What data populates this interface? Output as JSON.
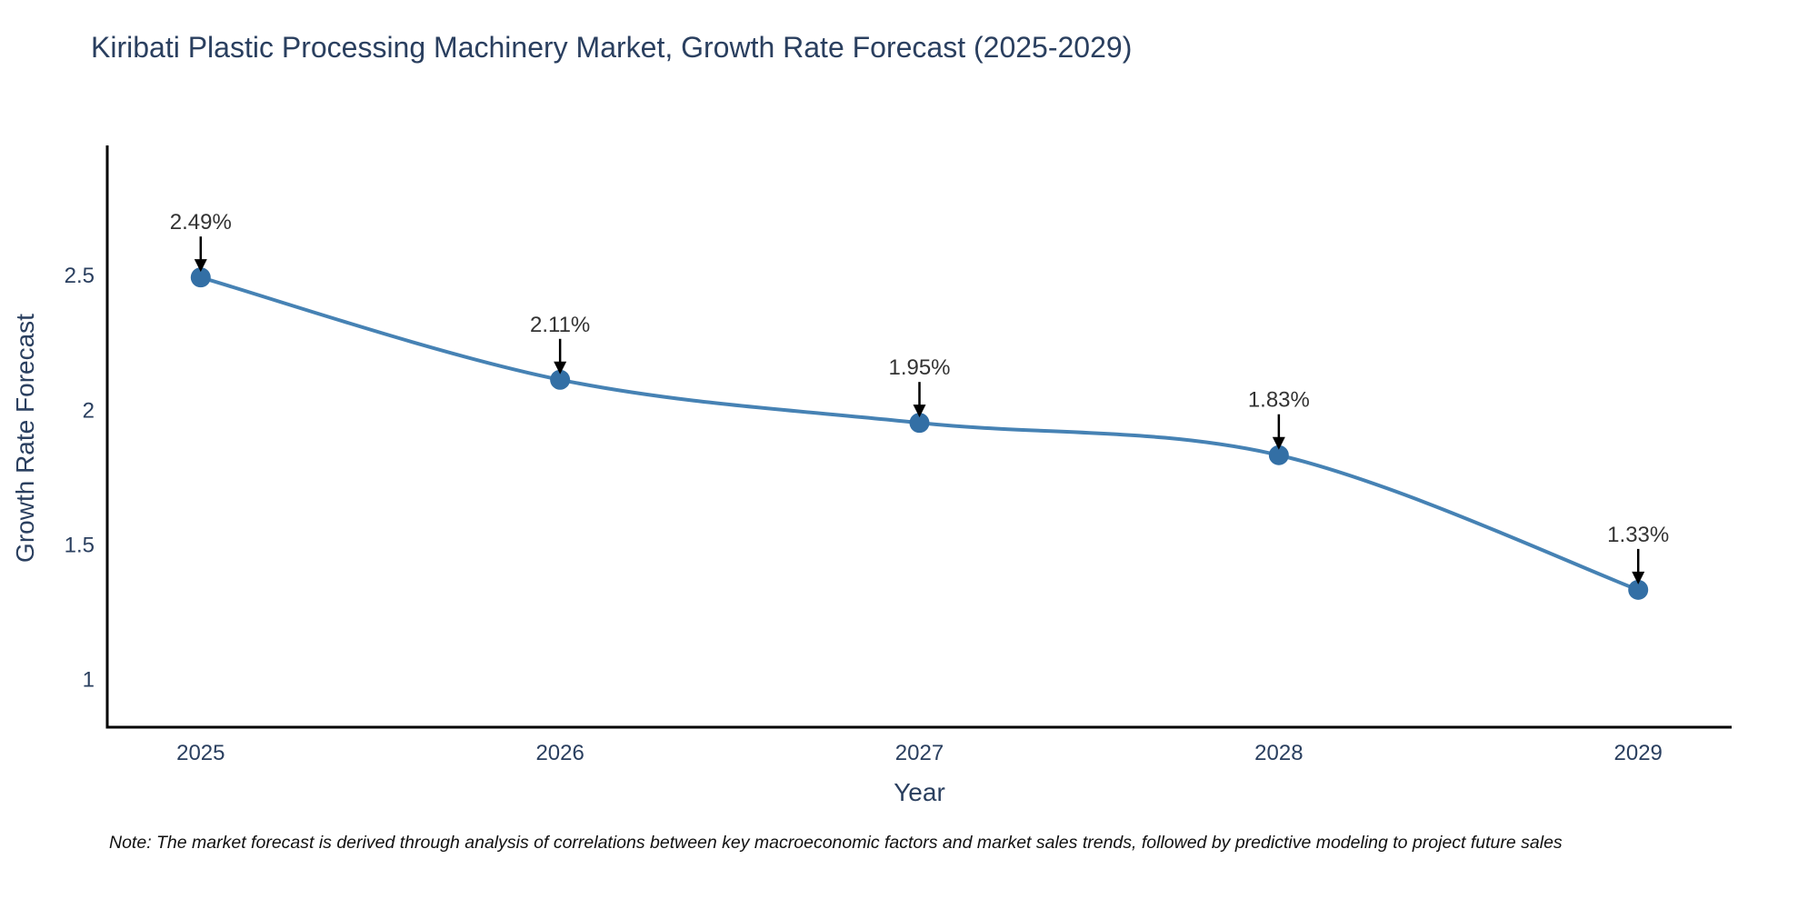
{
  "title": "Kiribati Plastic Processing Machinery Market, Growth Rate Forecast (2025-2029)",
  "note": "Note: The market forecast is derived through analysis of correlations between key macroeconomic factors and market sales trends, followed by predictive modeling to project future sales",
  "colors": {
    "line": "#4682b4",
    "marker": "#336fa5",
    "axis_line": "#000000",
    "title_text": "#2a3f5f",
    "tick_text": "#2a3f5f",
    "annotation_text": "#333333",
    "annotation_arrow": "#000000",
    "background": "#ffffff"
  },
  "chart_data": {
    "type": "line",
    "line_shape": "spline",
    "title": "Kiribati Plastic Processing Machinery Market, Growth Rate Forecast (2025-2029)",
    "xlabel": "Year",
    "ylabel": "Growth Rate Forecast",
    "x": [
      2025,
      2026,
      2027,
      2028,
      2029
    ],
    "series": [
      {
        "name": "Growth Rate Forecast",
        "values": [
          2.49,
          2.11,
          1.95,
          1.83,
          1.33
        ]
      }
    ],
    "point_labels": [
      "2.49%",
      "2.11%",
      "1.95%",
      "1.83%",
      "1.33%"
    ],
    "xticks": [
      2025,
      2026,
      2027,
      2028,
      2029
    ],
    "xtick_labels": [
      "2025",
      "2026",
      "2027",
      "2028",
      "2029"
    ],
    "yticks": [
      1,
      1.5,
      2,
      2.5
    ],
    "ytick_labels": [
      "1",
      "1.5",
      "2",
      "2.5"
    ],
    "xlim": [
      2024.74,
      2029.26
    ],
    "ylim": [
      0.82,
      2.98
    ],
    "grid": false,
    "legend_position": "none"
  }
}
